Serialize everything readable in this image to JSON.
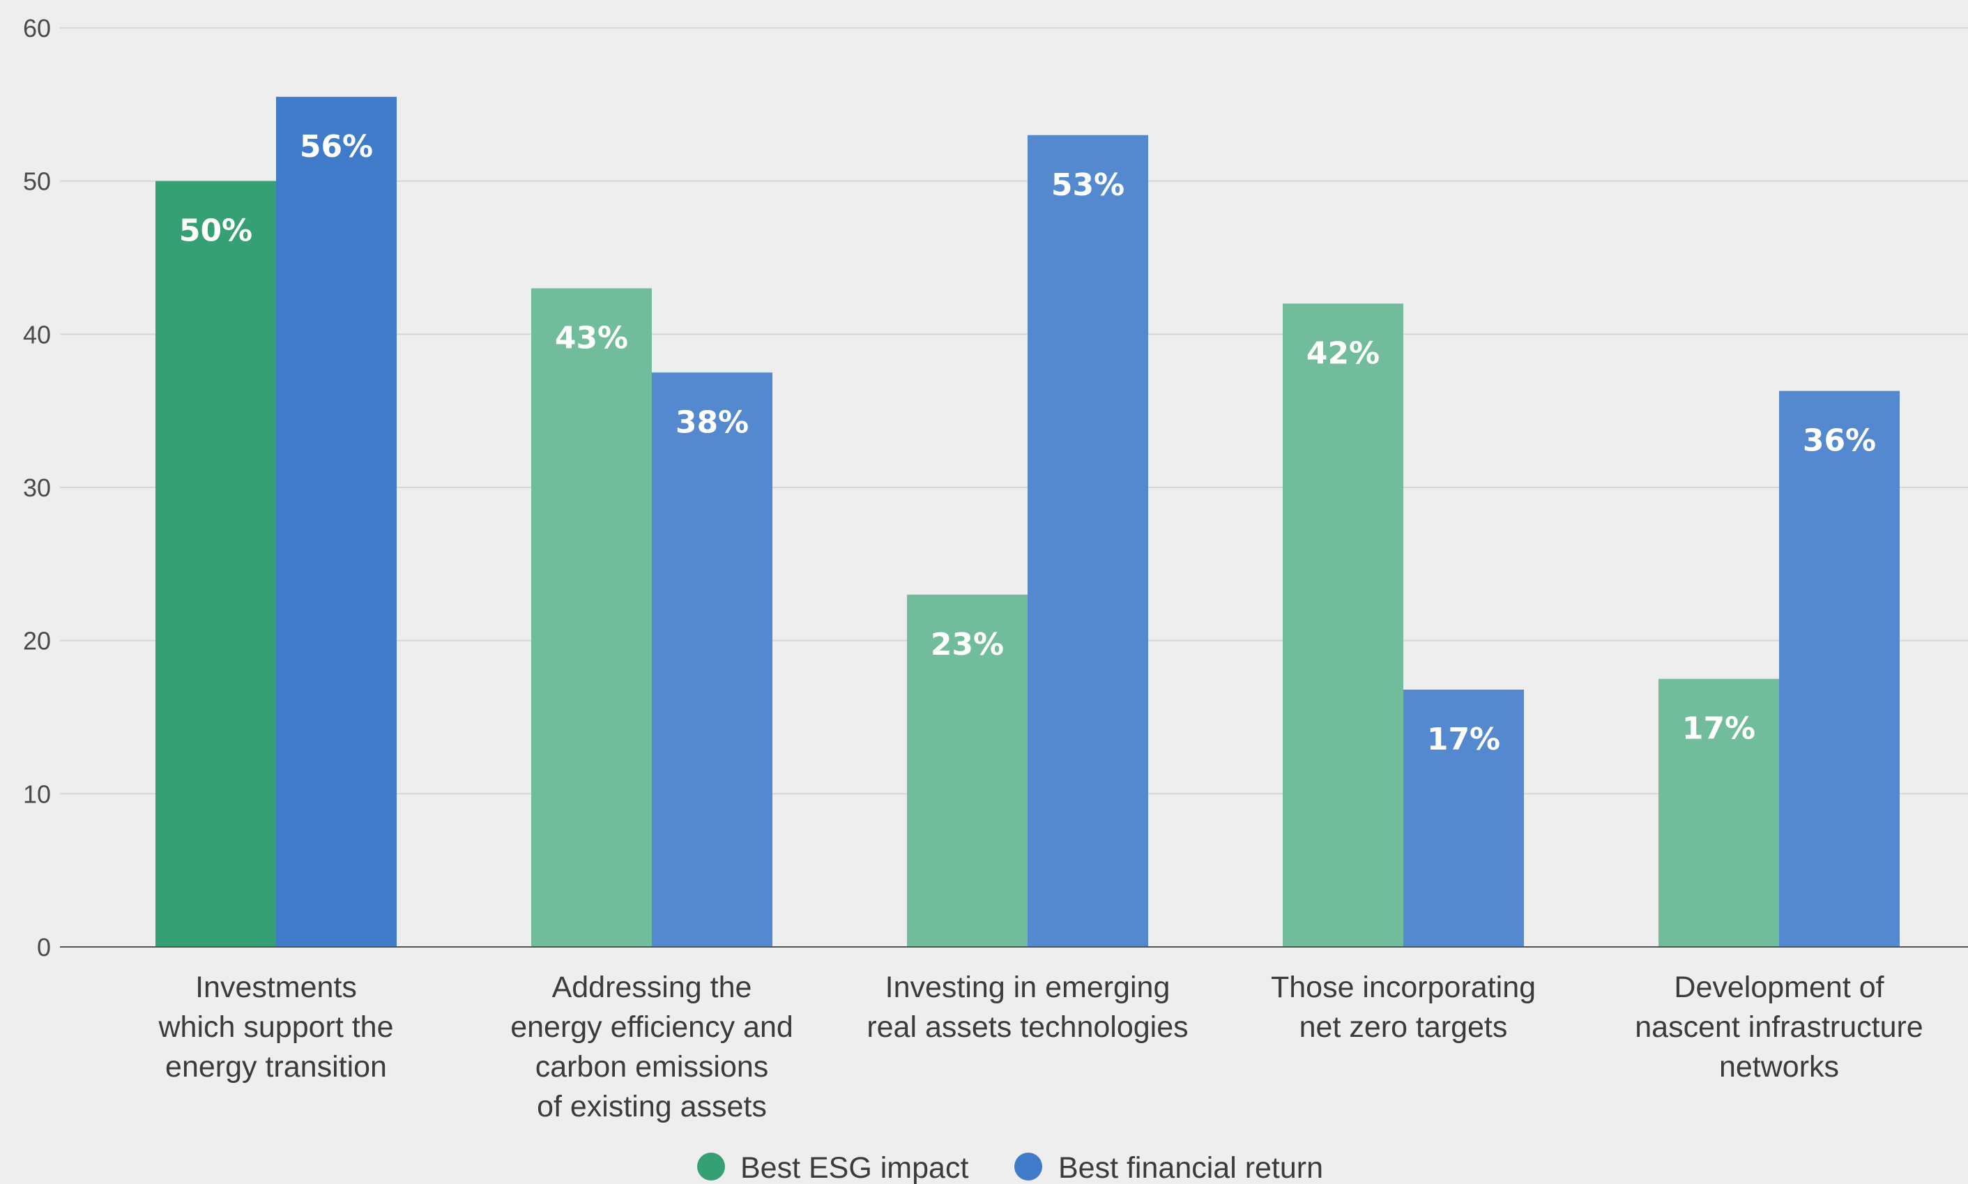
{
  "chart_data": {
    "type": "bar",
    "title": "",
    "xlabel": "",
    "ylabel": "",
    "ylim": [
      0,
      60
    ],
    "yticks": [
      0,
      10,
      20,
      30,
      40,
      50,
      60
    ],
    "grid": true,
    "legend_position": "bottom-center",
    "categories": [
      [
        "Investments",
        "which support the",
        "energy transition"
      ],
      [
        "Addressing the",
        "energy efficiency and",
        "carbon emissions",
        "of existing assets"
      ],
      [
        "Investing in emerging",
        "real assets technologies"
      ],
      [
        "Those incorporating",
        "net zero targets"
      ],
      [
        "Development of",
        "nascent infrastructure",
        "networks"
      ]
    ],
    "series": [
      {
        "name": "Best ESG impact",
        "legend_color": "#35a073",
        "colors": [
          "#35a073",
          "#71bc9b",
          "#71bc9b",
          "#71bc9b",
          "#71bc9b"
        ],
        "values": [
          50,
          43,
          23,
          42,
          17.5
        ],
        "labels": [
          "50%",
          "43%",
          "23%",
          "42%",
          "17%"
        ]
      },
      {
        "name": "Best financial return",
        "legend_color": "#3f7bc8",
        "colors": [
          "#3f7bc8",
          "#5488cf",
          "#5488cf",
          "#5488cf",
          "#5488cf"
        ],
        "values": [
          55.5,
          37.5,
          53,
          16.8,
          36.3
        ],
        "labels": [
          "56%",
          "38%",
          "53%",
          "17%",
          "36%"
        ]
      }
    ],
    "colors": {
      "background": "#eeeeee",
      "gridline": "#d6d6d6",
      "axis": "#555555"
    }
  }
}
